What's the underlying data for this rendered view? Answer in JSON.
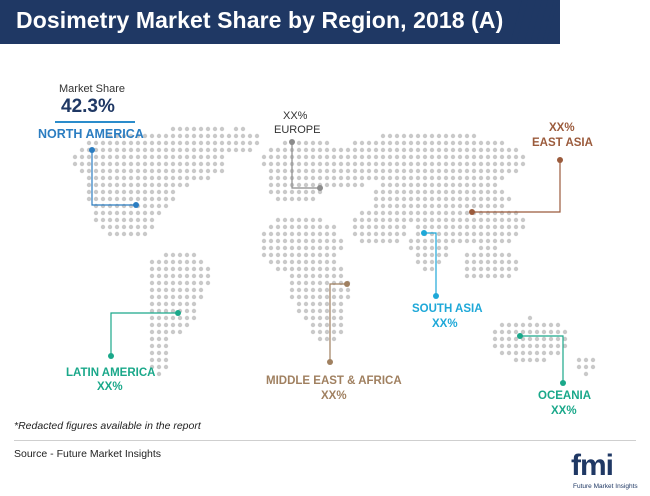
{
  "title": "Dosimetry Market Share by Region, 2018 (A)",
  "market_share_label": "Market Share",
  "regions": {
    "north_america": {
      "name": "NORTH AMERICA",
      "value": "42.3%",
      "color": "#2b7dc1"
    },
    "europe": {
      "name": "EUROPE",
      "value": "XX%",
      "color": "#8c8c8c"
    },
    "east_asia": {
      "name": "EAST ASIA",
      "value": "XX%",
      "color": "#9b5b3c"
    },
    "south_asia": {
      "name": "SOUTH ASIA",
      "value": "XX%",
      "color": "#1ea8d8"
    },
    "latin_america": {
      "name": "LATIN AMERICA",
      "value": "XX%",
      "color": "#1aa88a"
    },
    "middle_east_africa": {
      "name": "MIDDLE EAST & AFRICA",
      "value": "XX%",
      "color": "#a08060"
    },
    "oceania": {
      "name": "OCEANIA",
      "value": "XX%",
      "color": "#1aa88a"
    }
  },
  "note": "*Redacted figures available in the report",
  "source": "Source - Future Market Insights",
  "logo": {
    "text": "fmi",
    "subtext": "Future Market Insights"
  },
  "colors": {
    "title_bg": "#1f3864",
    "dots": "#c9c9c9"
  }
}
